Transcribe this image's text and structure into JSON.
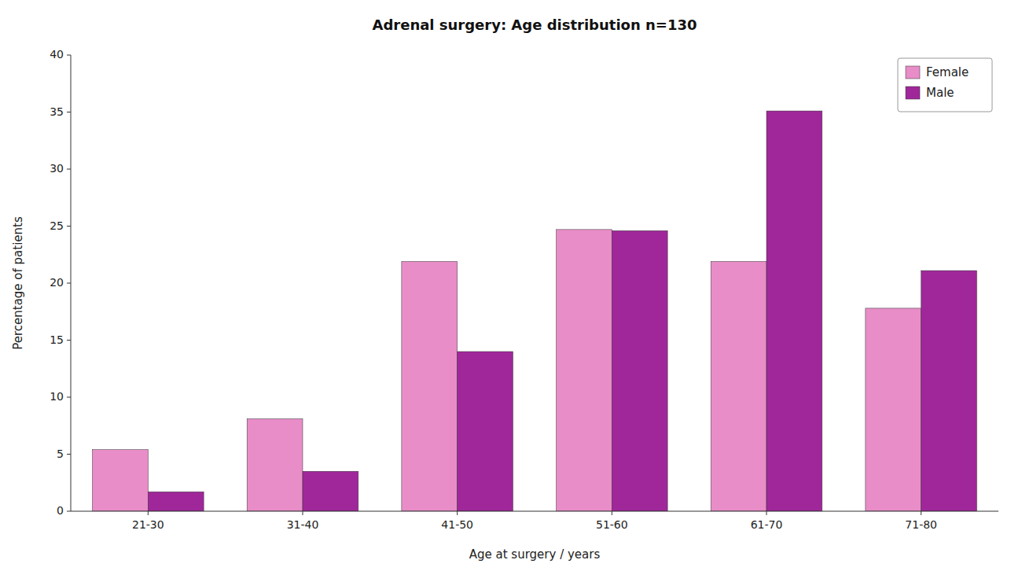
{
  "chart_data": {
    "type": "bar",
    "title": "Adrenal surgery: Age distribution n=130",
    "xlabel": "Age at surgery / years",
    "ylabel": "Percentage of patients",
    "categories": [
      "21-30",
      "31-40",
      "41-50",
      "51-60",
      "61-70",
      "71-80"
    ],
    "series": [
      {
        "name": "Female",
        "color": "#E88DC8",
        "values": [
          5.4,
          8.1,
          21.9,
          24.7,
          21.9,
          17.8
        ]
      },
      {
        "name": "Male",
        "color": "#A0279A",
        "values": [
          1.7,
          3.5,
          14.0,
          24.6,
          35.1,
          21.1
        ]
      }
    ],
    "ylim": [
      0,
      40
    ],
    "yticks": [
      0,
      5,
      10,
      15,
      20,
      25,
      30,
      35,
      40
    ],
    "grid": false,
    "legend": "upper right"
  }
}
